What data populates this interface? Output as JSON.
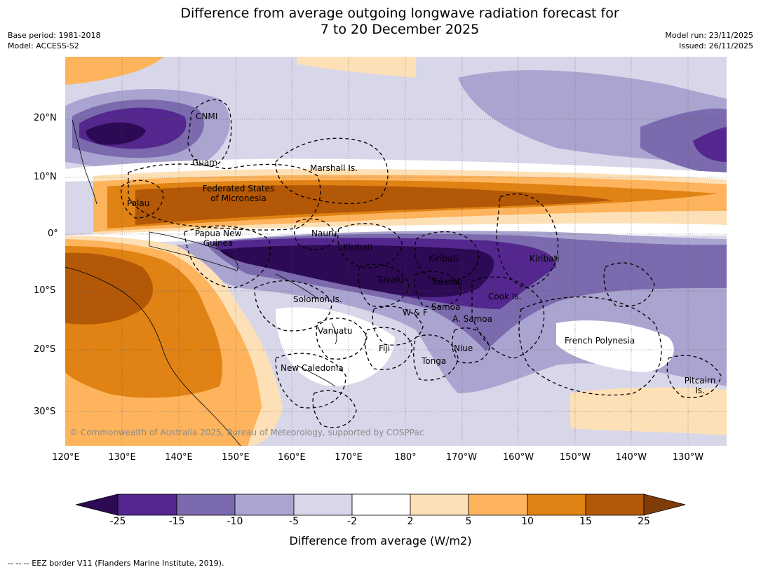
{
  "title_line1": "Difference from average outgoing longwave radiation forecast for",
  "title_line2": "7 to 20 December 2025",
  "meta_left": {
    "base_period": "Base period: 1981-2018",
    "model": "Model: ACCESS-S2"
  },
  "meta_right": {
    "model_run": "Model run: 23/11/2025",
    "issued": "Issued: 26/11/2025"
  },
  "lat_ticks": [
    "20°N",
    "10°N",
    "0°",
    "10°S",
    "20°S",
    "30°S"
  ],
  "lon_ticks": [
    "120°E",
    "130°E",
    "140°E",
    "150°E",
    "160°E",
    "170°E",
    "180°",
    "170°W",
    "160°W",
    "150°W",
    "140°W",
    "130°W"
  ],
  "region_labels": {
    "cnmi": "CNMI",
    "guam": "Guam",
    "marshall": "Marshall Is.",
    "fsm_1": "Federated States",
    "fsm_2": "of Micronesia",
    "palau": "Palau",
    "nauru": "Nauru",
    "png_1": "Papua New",
    "png_2": "Guinea",
    "kiribati_w": "Kiribati",
    "kiribati_c": "Kiribati",
    "kiribati_e": "Kiribati",
    "tuvalu": "Tuvalu",
    "tokelau": "Tokelau",
    "solomon": "Solomon Is.",
    "cook": "Cook Is.",
    "samoa": "Samoa",
    "wf": "W & F",
    "asamoa": "A. Samoa",
    "vanuatu": "Vanuatu",
    "fiji": "Fiji",
    "niue": "Niue",
    "french_polynesia": "French Polynesia",
    "tonga": "Tonga",
    "new_caledonia": "New Caledonia",
    "pitcairn_1": "Pitcairn",
    "pitcairn_2": "Is."
  },
  "copyright": "© Commonwealth of Australia 2025, Bureau of Meteorology, supported by COSPPac",
  "colorbar": {
    "labels": [
      "-25",
      "-15",
      "-10",
      "-5",
      "-2",
      "2",
      "5",
      "10",
      "15",
      "25"
    ],
    "colors": [
      "#2d0a54",
      "#54278f",
      "#7b6aad",
      "#aaa5d0",
      "#d8d7ea",
      "#ffffff",
      "#fee0b6",
      "#fdb45d",
      "#e08214",
      "#b35806",
      "#7f3b08"
    ],
    "title": "Difference from average (W/m2)"
  },
  "footer": "--  --  -- EEZ border V11 (Flanders Marine Institute, 2019)."
}
